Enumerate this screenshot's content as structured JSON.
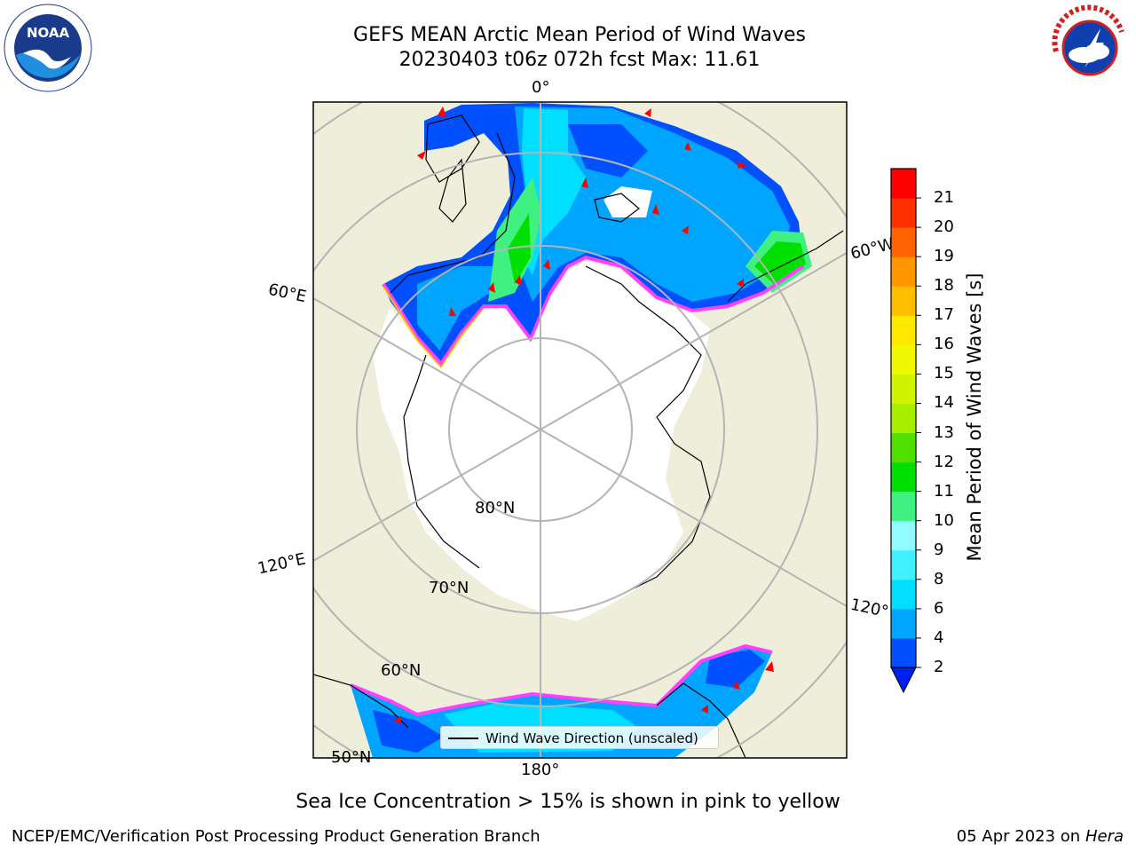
{
  "title": "GEFS MEAN Arctic Mean Period of Wind Waves",
  "subtitle": "20230403 t06z 072h fcst   Max: 11.61",
  "grid_labels": {
    "lon_0": "0°",
    "lon_60w": "60°W",
    "lon_60e": "60°E",
    "lon_120e": "120°E",
    "lon_120w": "120°",
    "lon_180": "180°",
    "lat_80": "80°N",
    "lat_70": "70°N",
    "lat_60": "60°N",
    "lat_50": "50°N"
  },
  "colorbar": {
    "label": "Mean Period of Wind Waves [s]",
    "ticks": [
      "2",
      "4",
      "6",
      "8",
      "9",
      "10",
      "11",
      "12",
      "13",
      "14",
      "15",
      "16",
      "17",
      "18",
      "19",
      "20",
      "21"
    ],
    "colors": [
      "#0050ff",
      "#00a5ff",
      "#00dfff",
      "#40f0ff",
      "#90fcff",
      "#40f080",
      "#00e000",
      "#50e000",
      "#a8ee00",
      "#d0f400",
      "#f0f800",
      "#ffe800",
      "#ffbe00",
      "#ff9600",
      "#ff6400",
      "#ff3000",
      "#ff0000"
    ],
    "extend_color": "#0020f0"
  },
  "legend": {
    "entry": "Wind Wave Direction (unscaled)"
  },
  "caption": "Sea Ice Concentration > 15% is shown in pink to yellow",
  "footer": {
    "left": "NCEP/EMC/Verification Post Processing Product Generation Branch",
    "right_date": "05 Apr 2023 on ",
    "right_machine": "Hera"
  },
  "logos": {
    "noaa": "NOAA",
    "nws": "NATIONAL WEATHER SERVICE"
  },
  "colors": {
    "land": "#efeedb",
    "ice": "#ffffff",
    "ice_edge": "#ff40ff",
    "grid": "#b4b4b4",
    "arrow": "#ff0000"
  }
}
